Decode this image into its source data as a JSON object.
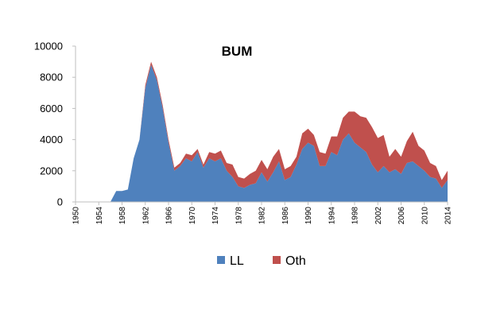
{
  "chart_data": {
    "type": "area",
    "stacked": true,
    "title": "BUM",
    "xlabel": "",
    "ylabel": "",
    "ylim": [
      0,
      10000
    ],
    "yticks": [
      0,
      2000,
      4000,
      6000,
      8000,
      10000
    ],
    "yticklabels": [
      "0",
      "2000",
      "4000",
      "6000",
      "8000",
      "10000"
    ],
    "xticks": [
      1950,
      1954,
      1958,
      1962,
      1966,
      1970,
      1974,
      1978,
      1982,
      1986,
      1990,
      1994,
      1998,
      2002,
      2006,
      2010,
      2014
    ],
    "xticklabels": [
      "1950",
      "1954",
      "1958",
      "1962",
      "1966",
      "1970",
      "1974",
      "1978",
      "1982",
      "1986",
      "1990",
      "1994",
      "1998",
      "2002",
      "2006",
      "2010",
      "2014"
    ],
    "grid": false,
    "legend_position": "bottom",
    "x": [
      1950,
      1951,
      1952,
      1953,
      1954,
      1955,
      1956,
      1957,
      1958,
      1959,
      1960,
      1961,
      1962,
      1963,
      1964,
      1965,
      1966,
      1967,
      1968,
      1969,
      1970,
      1971,
      1972,
      1973,
      1974,
      1975,
      1976,
      1977,
      1978,
      1979,
      1980,
      1981,
      1982,
      1983,
      1984,
      1985,
      1986,
      1987,
      1988,
      1989,
      1990,
      1991,
      1992,
      1993,
      1994,
      1995,
      1996,
      1997,
      1998,
      1999,
      2000,
      2001,
      2002,
      2003,
      2004,
      2005,
      2006,
      2007,
      2008,
      2009,
      2010,
      2011,
      2012,
      2013,
      2014
    ],
    "series": [
      {
        "name": "LL",
        "color": "#4f81bd",
        "values": [
          0,
          0,
          0,
          0,
          0,
          0,
          0,
          700,
          700,
          800,
          2800,
          4000,
          7300,
          8800,
          7800,
          6000,
          3800,
          2000,
          2300,
          2800,
          2600,
          3200,
          2200,
          2800,
          2600,
          2800,
          2000,
          1600,
          1000,
          900,
          1100,
          1200,
          1900,
          1300,
          1900,
          2600,
          1400,
          1600,
          2400,
          3400,
          3800,
          3600,
          2300,
          2300,
          3200,
          3000,
          4000,
          4400,
          3800,
          3500,
          3200,
          2400,
          1900,
          2300,
          1900,
          2100,
          1800,
          2500,
          2600,
          2300,
          2000,
          1600,
          1500,
          900,
          1400
        ]
      },
      {
        "name": "Oth",
        "color": "#c0504d",
        "values": [
          0,
          0,
          0,
          0,
          0,
          0,
          0,
          0,
          0,
          0,
          0,
          0,
          200,
          200,
          200,
          200,
          200,
          200,
          200,
          300,
          400,
          200,
          200,
          400,
          500,
          500,
          500,
          800,
          600,
          600,
          700,
          800,
          800,
          800,
          1000,
          800,
          700,
          700,
          500,
          1000,
          900,
          700,
          900,
          800,
          1000,
          1200,
          1400,
          1400,
          2000,
          2000,
          2200,
          2400,
          2200,
          2000,
          1000,
          1300,
          1100,
          1400,
          1900,
          1300,
          1300,
          900,
          800,
          500,
          600
        ]
      }
    ]
  }
}
